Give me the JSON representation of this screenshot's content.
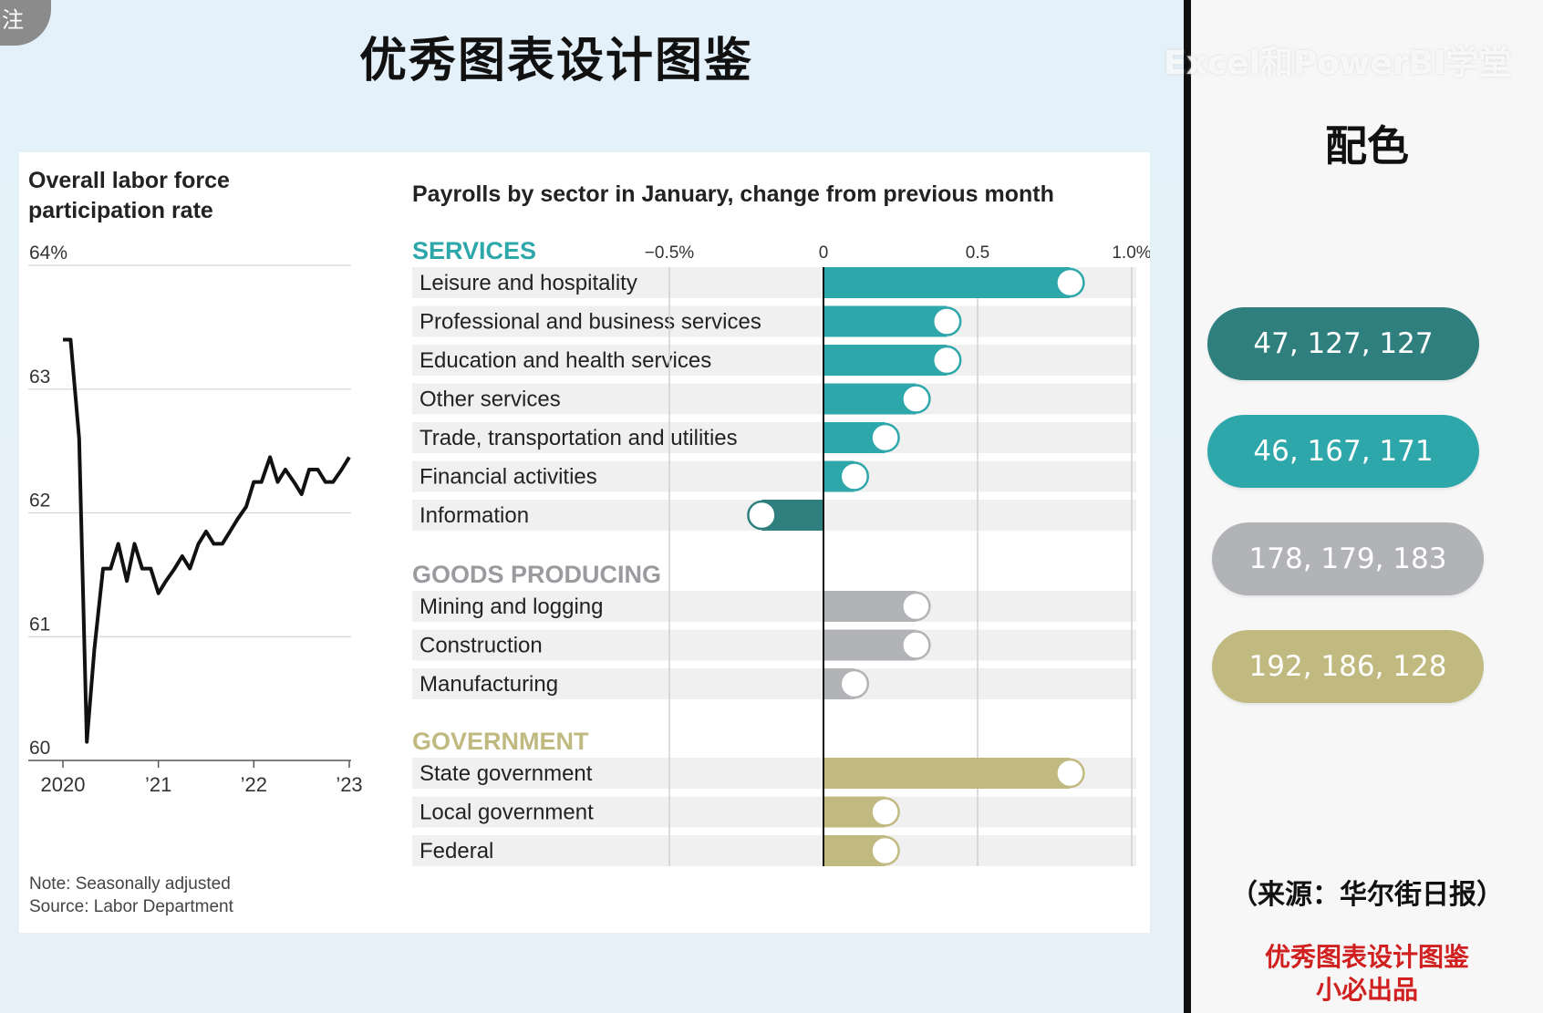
{
  "corner_label": "注",
  "main_title": "优秀图表设计图鉴",
  "watermark": "Excel和PowerBI学堂",
  "palette": {
    "title": "配色",
    "swatches": [
      {
        "label": "47, 127, 127",
        "color": "#2f7f7f"
      },
      {
        "label": "46, 167, 171",
        "color": "#2ea7ab"
      },
      {
        "label": "178, 179, 183",
        "color": "#b2b3b7"
      },
      {
        "label": "192, 186, 128",
        "color": "#c0ba80"
      }
    ]
  },
  "source_note": "（来源：华尔街日报）",
  "credit": [
    "优秀图表设计图鉴",
    "小必出品"
  ],
  "chart_data": [
    {
      "type": "line",
      "title": "Overall labor force participation rate",
      "y_unit": "%",
      "ylim": [
        60,
        64
      ],
      "y_ticks": [
        {
          "value": 64,
          "label": "64%"
        },
        {
          "value": 63,
          "label": "63"
        },
        {
          "value": 62,
          "label": "62"
        },
        {
          "value": 61,
          "label": "61"
        },
        {
          "value": 60,
          "label": "60"
        }
      ],
      "xlim": [
        2020,
        2023
      ],
      "x_ticks": [
        {
          "value": 2020,
          "label": "2020"
        },
        {
          "value": 2021,
          "label": "’21"
        },
        {
          "value": 2022,
          "label": "’22"
        },
        {
          "value": 2023,
          "label": "’23"
        }
      ],
      "grid": true,
      "series": [
        {
          "color": "#111111",
          "points": [
            [
              2020.0,
              63.4
            ],
            [
              2020.08,
              63.4
            ],
            [
              2020.17,
              62.6
            ],
            [
              2020.25,
              60.15
            ],
            [
              2020.33,
              60.9
            ],
            [
              2020.42,
              61.55
            ],
            [
              2020.5,
              61.55
            ],
            [
              2020.58,
              61.75
            ],
            [
              2020.67,
              61.45
            ],
            [
              2020.75,
              61.75
            ],
            [
              2020.83,
              61.55
            ],
            [
              2020.92,
              61.55
            ],
            [
              2021.0,
              61.35
            ],
            [
              2021.08,
              61.45
            ],
            [
              2021.17,
              61.55
            ],
            [
              2021.25,
              61.65
            ],
            [
              2021.33,
              61.55
            ],
            [
              2021.42,
              61.75
            ],
            [
              2021.5,
              61.85
            ],
            [
              2021.58,
              61.75
            ],
            [
              2021.67,
              61.75
            ],
            [
              2021.75,
              61.85
            ],
            [
              2021.83,
              61.95
            ],
            [
              2021.92,
              62.05
            ],
            [
              2022.0,
              62.25
            ],
            [
              2022.08,
              62.25
            ],
            [
              2022.17,
              62.45
            ],
            [
              2022.25,
              62.25
            ],
            [
              2022.33,
              62.35
            ],
            [
              2022.42,
              62.25
            ],
            [
              2022.5,
              62.15
            ],
            [
              2022.58,
              62.35
            ],
            [
              2022.67,
              62.35
            ],
            [
              2022.75,
              62.25
            ],
            [
              2022.83,
              62.25
            ],
            [
              2022.92,
              62.35
            ],
            [
              2023.0,
              62.45
            ]
          ]
        }
      ],
      "notes": [
        "Note: Seasonally adjusted",
        "Source: Labor Department"
      ]
    },
    {
      "type": "bar",
      "orientation": "horizontal",
      "title": "Payrolls by sector in January, change from previous month",
      "xlim": [
        -0.5,
        1.0
      ],
      "x_ticks": [
        {
          "value": -0.5,
          "label": "−0.5%"
        },
        {
          "value": 0,
          "label": "0"
        },
        {
          "value": 0.5,
          "label": "0.5"
        },
        {
          "value": 1.0,
          "label": "1.0%"
        }
      ],
      "groups": [
        {
          "name": "SERVICES",
          "name_color": "#2ea7ab",
          "items": [
            {
              "label": "Leisure and hospitality",
              "value": 0.8,
              "color": "#2ea7ab"
            },
            {
              "label": "Professional and business services",
              "value": 0.4,
              "color": "#2ea7ab"
            },
            {
              "label": "Education and health services",
              "value": 0.4,
              "color": "#2ea7ab"
            },
            {
              "label": "Other services",
              "value": 0.3,
              "color": "#2ea7ab"
            },
            {
              "label": "Trade, transportation and utilities",
              "value": 0.2,
              "color": "#2ea7ab"
            },
            {
              "label": "Financial activities",
              "value": 0.1,
              "color": "#2ea7ab"
            },
            {
              "label": "Information",
              "value": -0.2,
              "color": "#2f7f7f"
            }
          ]
        },
        {
          "name": "GOODS PRODUCING",
          "name_color": "#9a9b9f",
          "items": [
            {
              "label": "Mining and logging",
              "value": 0.3,
              "color": "#b2b3b7"
            },
            {
              "label": "Construction",
              "value": 0.3,
              "color": "#b2b3b7"
            },
            {
              "label": "Manufacturing",
              "value": 0.1,
              "color": "#b2b3b7"
            }
          ]
        },
        {
          "name": "GOVERNMENT",
          "name_color": "#c0ba80",
          "items": [
            {
              "label": "State government",
              "value": 0.8,
              "color": "#c0ba80"
            },
            {
              "label": "Local government",
              "value": 0.2,
              "color": "#c0ba80"
            },
            {
              "label": "Federal",
              "value": 0.2,
              "color": "#c0ba80"
            }
          ]
        }
      ]
    }
  ]
}
